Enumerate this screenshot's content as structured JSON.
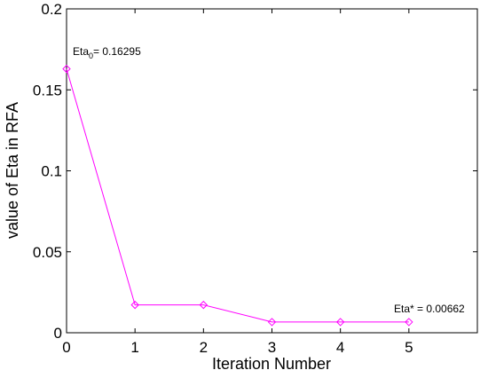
{
  "chart_data": {
    "type": "line",
    "xlabel": "Iteration Number",
    "ylabel": "value of Eta in RFA",
    "xlim": [
      0,
      6
    ],
    "ylim": [
      0,
      0.2
    ],
    "x_ticks": [
      0,
      1,
      2,
      3,
      4,
      5
    ],
    "x_tick_labels": [
      "0",
      "1",
      "2",
      "3",
      "4",
      "5"
    ],
    "y_ticks": [
      0,
      0.05,
      0.1,
      0.15,
      0.2
    ],
    "y_tick_labels": [
      "0",
      "0.05",
      "0.1",
      "0.15",
      "0.2"
    ],
    "grid": false,
    "series": [
      {
        "color": "#ff00ff",
        "marker": "diamond",
        "x": [
          0,
          1,
          2,
          3,
          4,
          5
        ],
        "y": [
          0.16295,
          0.0172,
          0.0172,
          0.00662,
          0.00662,
          0.00662
        ]
      }
    ],
    "annotations": {
      "start": {
        "prefix": "Eta",
        "sub": "0",
        "suffix": "= 0.16295",
        "x": 0,
        "y": 0.16295
      },
      "end": {
        "text": "Eta* = 0.00662",
        "x": 5,
        "y": 0.00662
      }
    }
  }
}
